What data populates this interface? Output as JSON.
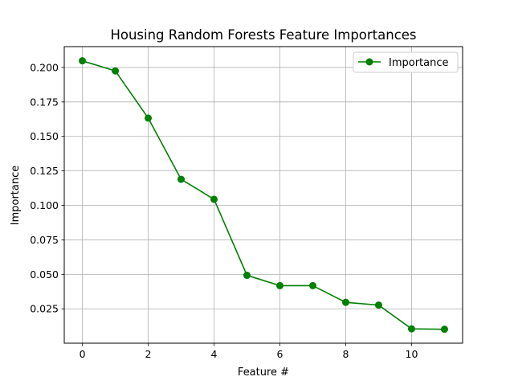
{
  "chart_data": {
    "type": "line",
    "title": "Housing Random Forests Feature Importances",
    "xlabel": "Feature #",
    "ylabel": "Importance",
    "x": [
      0,
      1,
      2,
      3,
      4,
      5,
      6,
      7,
      8,
      9,
      10,
      11
    ],
    "series": [
      {
        "name": "Importance",
        "values": [
          0.2048,
          0.1975,
          0.1633,
          0.1189,
          0.1044,
          0.0493,
          0.0418,
          0.0418,
          0.0297,
          0.0277,
          0.0105,
          0.0102
        ],
        "color": "#008000",
        "marker": "circle"
      }
    ],
    "xticks": [
      0,
      2,
      4,
      6,
      8,
      10
    ],
    "xtick_labels": [
      "0",
      "2",
      "4",
      "6",
      "8",
      "10"
    ],
    "yticks": [
      0.025,
      0.05,
      0.075,
      0.1,
      0.125,
      0.15,
      0.175,
      0.2
    ],
    "ytick_labels": [
      "0.025",
      "0.050",
      "0.075",
      "0.100",
      "0.125",
      "0.150",
      "0.175",
      "0.200"
    ],
    "xlim": [
      -0.55,
      11.55
    ],
    "ylim": [
      9e-05,
      0.2151
    ],
    "grid": true,
    "legend_position": "top-right"
  }
}
